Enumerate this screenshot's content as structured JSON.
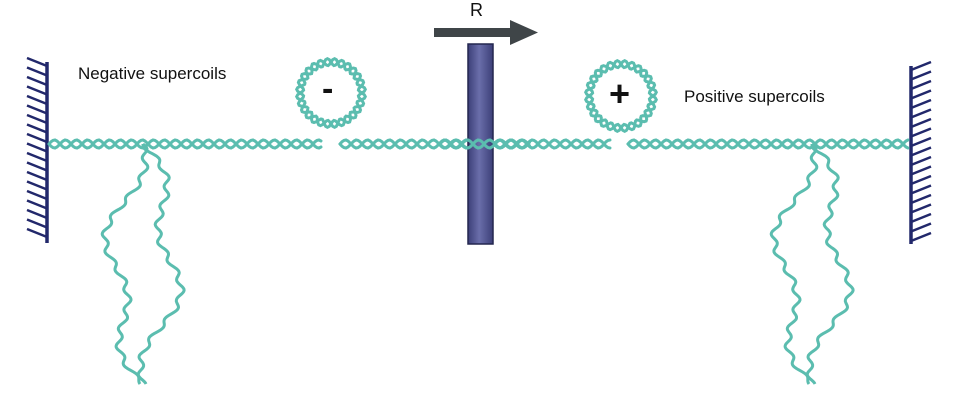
{
  "labels": {
    "negative": "Negative  supercoils",
    "positive": "Positive supercoils",
    "minus": "-",
    "plus": "+",
    "r": "R"
  },
  "colors": {
    "dna": "#5bbdaf",
    "anchor": "#22286b",
    "rod": "#505490",
    "rod_edge": "#23264f",
    "arrow": "#3f4548"
  }
}
